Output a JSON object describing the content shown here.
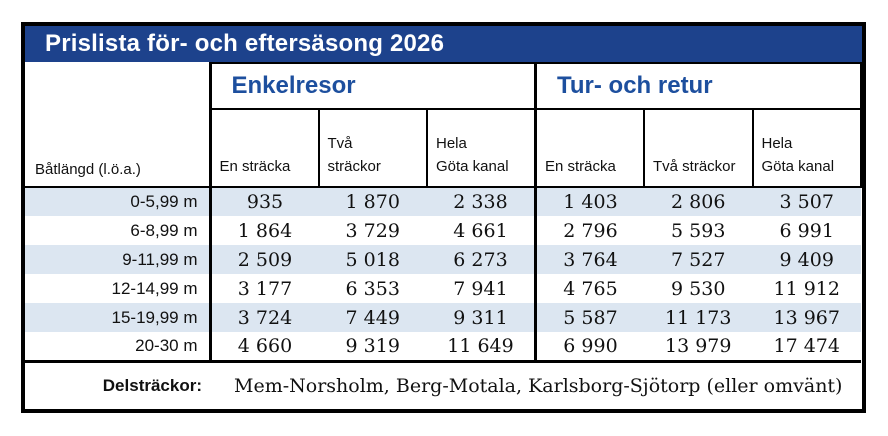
{
  "title": "Prislista för- och eftersäsong 2026",
  "table": {
    "row_header": "Båtlängd (l.ö.a.)",
    "group_headers": [
      {
        "label": "Enkelresor"
      },
      {
        "label": "Tur- och retur"
      }
    ],
    "column_headers": [
      "En sträcka",
      "Två\nsträckor",
      "Hela\nGöta kanal",
      "En sträcka",
      "Två sträckor",
      "Hela\nGöta kanal"
    ],
    "rows": [
      {
        "label": "0-5,99 m",
        "values": [
          "935",
          "1 870",
          "2 338",
          "1 403",
          "2 806",
          "3 507"
        ]
      },
      {
        "label": "6-8,99 m",
        "values": [
          "1 864",
          "3 729",
          "4 661",
          "2 796",
          "5 593",
          "6 991"
        ]
      },
      {
        "label": "9-11,99 m",
        "values": [
          "2 509",
          "5 018",
          "6 273",
          "3 764",
          "7 527",
          "9 409"
        ]
      },
      {
        "label": "12-14,99 m",
        "values": [
          "3 177",
          "6 353",
          "7 941",
          "4 765",
          "9 530",
          "11 912"
        ]
      },
      {
        "label": "15-19,99 m",
        "values": [
          "3 724",
          "7 449",
          "9 311",
          "5 587",
          "11 173",
          "13 967"
        ]
      },
      {
        "label": "20-30 m",
        "values": [
          "4 660",
          "9 319",
          "11 649",
          "6 990",
          "13 979",
          "17 474"
        ]
      }
    ],
    "footer": {
      "label": "Delsträckor:",
      "text": "Mem-Norsholm, Berg-Motala, Karlsborg-Sjötorp (eller omvänt)"
    }
  },
  "colors": {
    "title_bar_bg": "#1d428c",
    "title_text": "#ffffff",
    "group_header_text": "#1d4f9e",
    "row_alt_bg": "#dce6f1",
    "border": "#000000"
  }
}
